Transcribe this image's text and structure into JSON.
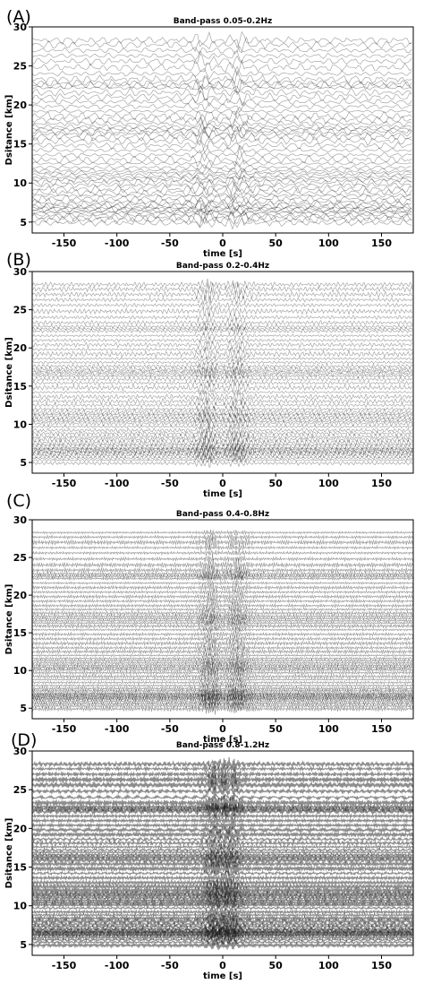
{
  "chart_data": [
    {
      "panel_label": "(A)",
      "type": "line",
      "title": "Band-pass 0.05-0.2Hz",
      "xlabel": "time [s]",
      "ylabel": "Dsitance [km]",
      "xlim": [
        -180,
        180
      ],
      "ylim": [
        3.6,
        30
      ],
      "xticks": [
        -150,
        -100,
        -50,
        0,
        50,
        100,
        150
      ],
      "yticks": [
        5,
        10,
        15,
        20,
        25,
        30
      ],
      "series_color": "#000000",
      "trace_alpha": 0.35,
      "amplitude_km": 0.7,
      "oscillation_period_s": 11,
      "signal_windows_s": [
        -18,
        15
      ],
      "trace_offsets_km": [
        4.9,
        5.3,
        5.6,
        5.9,
        6.2,
        6.4,
        6.6,
        6.8,
        7.0,
        7.3,
        7.6,
        8.0,
        8.4,
        8.8,
        9.2,
        9.7,
        10.1,
        10.4,
        10.7,
        11.0,
        11.3,
        11.6,
        12.0,
        12.5,
        13.0,
        13.6,
        14.2,
        14.8,
        15.4,
        15.9,
        16.3,
        16.6,
        16.9,
        17.2,
        17.6,
        18.1,
        18.6,
        19.2,
        19.8,
        20.4,
        21.0,
        21.6,
        22.2,
        22.5,
        22.8,
        23.3,
        24.0,
        24.8,
        25.6,
        26.3,
        27.0,
        27.7,
        28.3
      ]
    },
    {
      "panel_label": "(B)",
      "type": "line",
      "title": "Band-pass 0.2-0.4Hz",
      "xlabel": "time [s]",
      "ylabel": "Dsitance [km]",
      "xlim": [
        -180,
        180
      ],
      "ylim": [
        3.6,
        30
      ],
      "xticks": [
        -150,
        -100,
        -50,
        0,
        50,
        100,
        150
      ],
      "yticks": [
        5,
        10,
        15,
        20,
        25,
        30
      ],
      "series_color": "#000000",
      "trace_alpha": 0.35,
      "amplitude_km": 0.5,
      "oscillation_period_s": 4,
      "signal_windows_s": [
        -15,
        14
      ],
      "trace_offsets_km": [
        4.9,
        5.3,
        5.6,
        5.9,
        6.2,
        6.4,
        6.6,
        6.8,
        7.0,
        7.3,
        7.6,
        8.0,
        8.4,
        8.8,
        9.2,
        9.7,
        10.1,
        10.4,
        10.7,
        11.0,
        11.3,
        11.6,
        12.0,
        12.5,
        13.0,
        13.6,
        14.2,
        14.8,
        15.4,
        15.9,
        16.3,
        16.6,
        16.9,
        17.2,
        17.6,
        18.1,
        18.6,
        19.2,
        19.8,
        20.4,
        21.0,
        21.6,
        22.2,
        22.5,
        22.8,
        23.3,
        24.0,
        24.8,
        25.6,
        26.3,
        27.0,
        27.7,
        28.3
      ]
    },
    {
      "panel_label": "(C)",
      "type": "line",
      "title": "Band-pass 0.4-0.8Hz",
      "xlabel": "time [s]",
      "ylabel": "Dsitance [km]",
      "xlim": [
        -180,
        180
      ],
      "ylim": [
        3.6,
        30
      ],
      "xticks": [
        -150,
        -100,
        -50,
        0,
        50,
        100,
        150
      ],
      "yticks": [
        5,
        10,
        15,
        20,
        25,
        30
      ],
      "series_color": "#000000",
      "trace_alpha": 0.4,
      "amplitude_km": 0.45,
      "oscillation_period_s": 2,
      "signal_windows_s": [
        -12,
        14
      ],
      "trace_offsets_km": [
        4.9,
        5.3,
        5.6,
        5.9,
        6.2,
        6.4,
        6.6,
        6.8,
        7.0,
        7.3,
        7.6,
        8.0,
        8.4,
        8.8,
        9.2,
        9.7,
        10.1,
        10.4,
        10.7,
        11.0,
        11.3,
        11.6,
        12.0,
        12.5,
        13.0,
        13.6,
        14.2,
        14.8,
        15.4,
        15.9,
        16.3,
        16.6,
        16.9,
        17.2,
        17.6,
        18.1,
        18.6,
        19.2,
        19.8,
        20.4,
        21.0,
        21.6,
        22.2,
        22.5,
        22.8,
        23.3,
        24.0,
        24.8,
        25.6,
        26.3,
        27.0,
        27.7,
        28.3
      ]
    },
    {
      "panel_label": "(D)",
      "type": "line",
      "title": "Band-pass 0.8-1.2Hz",
      "xlabel": "time [s]",
      "ylabel": "Dsitance [km]",
      "xlim": [
        -180,
        180
      ],
      "ylim": [
        3.6,
        30
      ],
      "xticks": [
        -150,
        -100,
        -50,
        0,
        50,
        100,
        150
      ],
      "yticks": [
        5,
        10,
        15,
        20,
        25,
        30
      ],
      "series_color": "#000000",
      "trace_alpha": 0.45,
      "amplitude_km": 0.5,
      "oscillation_period_s": 1.2,
      "signal_windows_s": [
        -8,
        8
      ],
      "trace_offsets_km": [
        4.9,
        5.3,
        5.6,
        5.9,
        6.2,
        6.4,
        6.6,
        6.8,
        7.0,
        7.3,
        7.6,
        8.0,
        8.4,
        8.8,
        9.2,
        9.7,
        10.1,
        10.4,
        10.7,
        11.0,
        11.3,
        11.6,
        12.0,
        12.5,
        13.0,
        13.6,
        14.2,
        14.8,
        15.4,
        15.9,
        16.3,
        16.6,
        16.9,
        17.2,
        17.6,
        18.1,
        18.6,
        19.2,
        19.8,
        20.4,
        21.0,
        21.6,
        22.2,
        22.5,
        22.8,
        23.3,
        24.0,
        24.8,
        25.6,
        26.3,
        27.0,
        27.7,
        28.3
      ]
    }
  ]
}
